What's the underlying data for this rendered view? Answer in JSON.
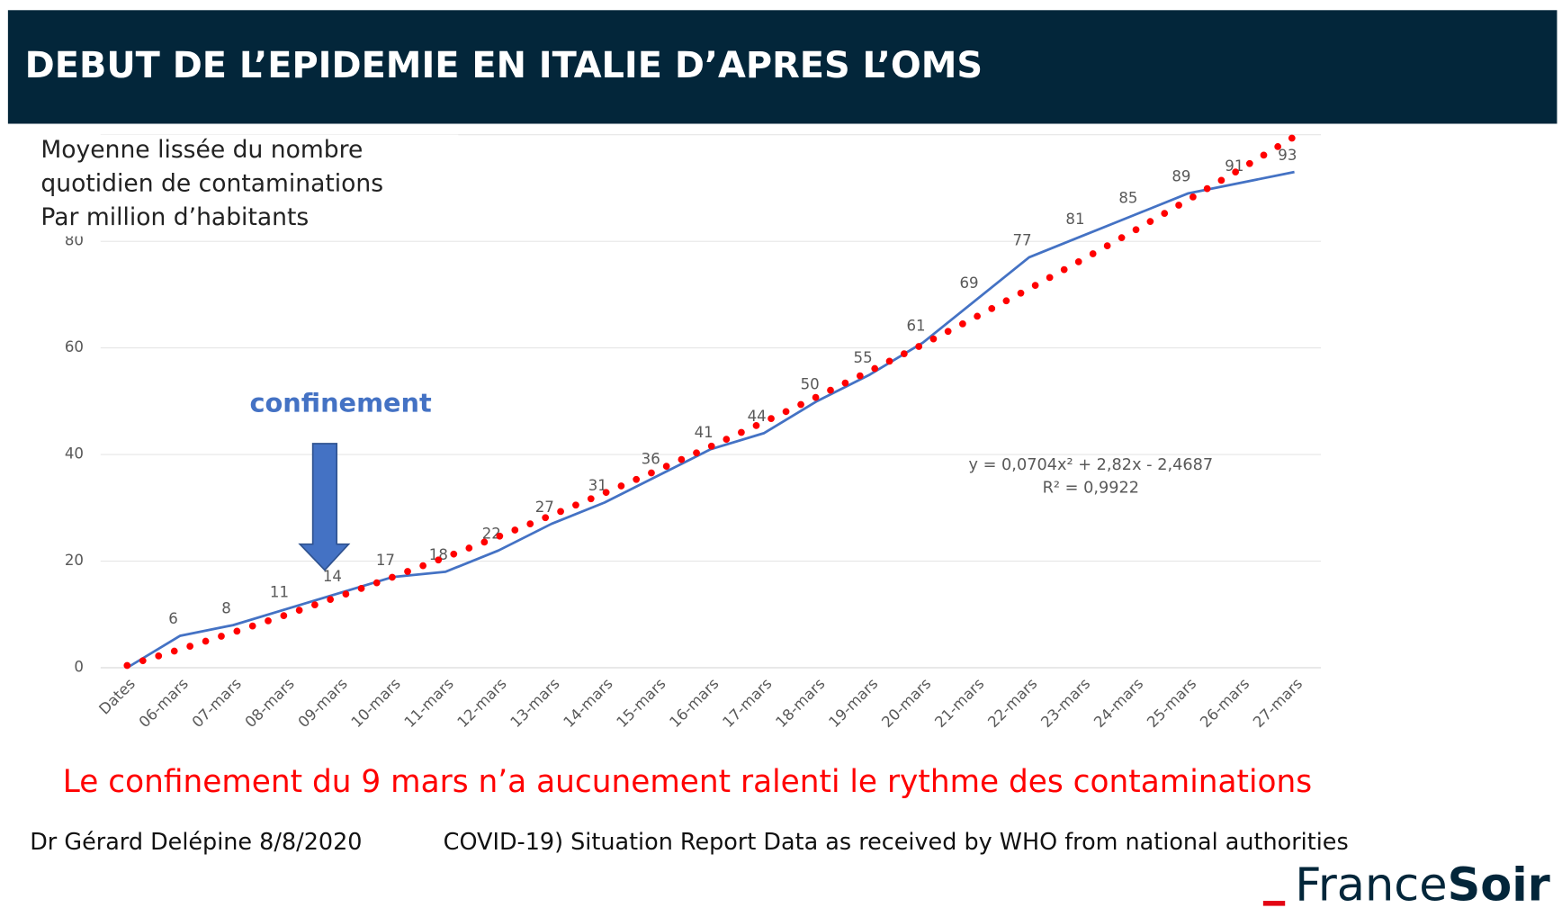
{
  "chart_data": {
    "type": "line",
    "title": "DEBUT DE L’EPIDEMIE EN ITALIE D’APRES L’OMS",
    "subtitle": [
      "Moyenne lissée du nombre",
      "quotidien de contaminations",
      "Par million d’habitants"
    ],
    "categories": [
      "Dates",
      "06-mars",
      "07-mars",
      "08-mars",
      "09-mars",
      "10-mars",
      "11-mars",
      "12-mars",
      "13-mars",
      "14-mars",
      "15-mars",
      "16-mars",
      "17-mars",
      "18-mars",
      "19-mars",
      "20-mars",
      "21-mars",
      "22-mars",
      "23-mars",
      "24-mars",
      "25-mars",
      "26-mars",
      "27-mars"
    ],
    "series": [
      {
        "color": "#4472c4",
        "style": "solid",
        "values": [
          0,
          6,
          8,
          11,
          14,
          17,
          18,
          22,
          27,
          31,
          36,
          41,
          44,
          50,
          55,
          61,
          69,
          77,
          81,
          85,
          89,
          91,
          93
        ],
        "value_labels": [
          null,
          "6",
          "8",
          "11",
          "14",
          "17",
          "18",
          "22",
          "27",
          "31",
          "36",
          "41",
          "44",
          "50",
          "55",
          "61",
          "69",
          "77",
          "81",
          "85",
          "89",
          "91",
          "93"
        ]
      },
      {
        "color": "#ff0000",
        "style": "dotted",
        "values": [
          0.42,
          3.45,
          6.62,
          9.94,
          13.39,
          16.99,
          20.72,
          24.6,
          28.61,
          32.77,
          37.07,
          41.51,
          46.09,
          50.81,
          55.67,
          60.67,
          65.82,
          71.1,
          76.53,
          82.09,
          87.8,
          93.65,
          99.63
        ]
      }
    ],
    "ylim": [
      0,
      100
    ],
    "yticks": [
      0,
      20,
      40,
      60,
      80
    ],
    "grid": true,
    "annotations": {
      "arrow_label": "confinement",
      "equation": "y = 0,0704x² + 2,82x - 2,4687",
      "r2": "R² = 0,9922",
      "caption": "Le confinement du 9 mars n’a aucunement ralenti le rythme des contaminations",
      "author": "Dr Gérard Delépine 8/8/2020",
      "source": "COVID-19)  Situation Report Data as received by WHO from national authorities",
      "brand_a": "France",
      "brand_b": "Soir"
    }
  }
}
